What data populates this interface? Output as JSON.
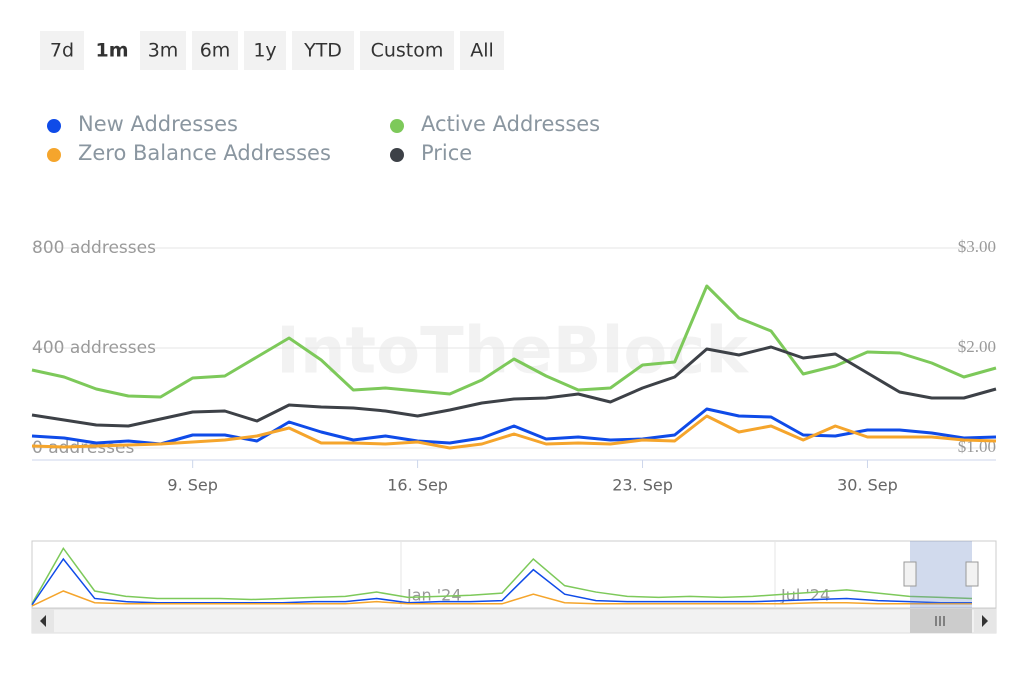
{
  "range_buttons": [
    "7d",
    "1m",
    "3m",
    "6m",
    "1y",
    "YTD",
    "Custom",
    "All"
  ],
  "selected_button": 1,
  "chart_data": {
    "type": "line",
    "watermark": "IntoTheBlock",
    "x": [
      4,
      5,
      6,
      7,
      8,
      9,
      10,
      11,
      12,
      13,
      14,
      15,
      16,
      17,
      18,
      19,
      20,
      21,
      22,
      23,
      24,
      25,
      26,
      27,
      28,
      29,
      30,
      31,
      32,
      33,
      34
    ],
    "xlim": [
      4,
      34
    ],
    "xticks": [
      {
        "value": 9,
        "label": "9. Sep"
      },
      {
        "value": 16,
        "label": "16. Sep"
      },
      {
        "value": 23,
        "label": "23. Sep"
      },
      {
        "value": 30,
        "label": "30. Sep"
      }
    ],
    "ylim": [
      0,
      800
    ],
    "yticks": [
      {
        "value": 0,
        "label": "0 addresses"
      },
      {
        "value": 400,
        "label": "400 addresses"
      },
      {
        "value": 800,
        "label": "800 addresses"
      }
    ],
    "y2lim": [
      1,
      3
    ],
    "y2ticks": [
      {
        "value": 1,
        "label": "$1.00"
      },
      {
        "value": 2,
        "label": "$2.00"
      },
      {
        "value": 3,
        "label": "$3.00"
      }
    ],
    "grid": true,
    "series": [
      {
        "name": "New Addresses",
        "color": "#0f4be8",
        "values": [
          48,
          40,
          20,
          28,
          16,
          52,
          52,
          28,
          104,
          64,
          32,
          48,
          28,
          20,
          40,
          88,
          36,
          44,
          32,
          36,
          52,
          156,
          128,
          124,
          52,
          48,
          72,
          72,
          60,
          40,
          44
        ]
      },
      {
        "name": "Zero Balance Addresses",
        "color": "#f5a52c",
        "values": [
          8,
          4,
          8,
          12,
          16,
          24,
          32,
          48,
          80,
          20,
          20,
          16,
          24,
          0,
          16,
          56,
          16,
          20,
          16,
          32,
          28,
          128,
          64,
          88,
          32,
          88,
          44,
          44,
          44,
          32,
          28
        ]
      },
      {
        "name": "Active Addresses",
        "color": "#7dc95a",
        "values": [
          312,
          284,
          236,
          208,
          204,
          280,
          288,
          364,
          440,
          352,
          232,
          240,
          228,
          216,
          272,
          356,
          288,
          232,
          240,
          332,
          344,
          648,
          520,
          468,
          296,
          328,
          384,
          380,
          340,
          284,
          320
        ]
      },
      {
        "name": "Price",
        "color": "#3d4147",
        "axis": "y2",
        "values": [
          1.33,
          1.28,
          1.23,
          1.22,
          1.29,
          1.36,
          1.37,
          1.27,
          1.43,
          1.41,
          1.4,
          1.37,
          1.32,
          1.38,
          1.45,
          1.49,
          1.5,
          1.54,
          1.46,
          1.6,
          1.71,
          1.99,
          1.93,
          2.01,
          1.9,
          1.94,
          1.75,
          1.56,
          1.5,
          1.5,
          1.59
        ]
      }
    ]
  },
  "navigator": {
    "labels": [
      "Jan '24",
      "Jul '24"
    ],
    "ylim": [
      0,
      60
    ],
    "series": [
      {
        "color": "#7dc95a",
        "values": [
          3,
          55,
          15,
          10,
          8,
          8,
          8,
          7,
          8,
          9,
          10,
          14,
          9,
          10,
          11,
          13,
          45,
          20,
          14,
          10,
          9,
          10,
          9,
          10,
          12,
          14,
          16,
          13,
          10,
          9,
          8
        ]
      },
      {
        "color": "#0f4be8",
        "values": [
          2,
          45,
          8,
          5,
          4,
          4,
          4,
          4,
          4,
          5,
          5,
          8,
          4,
          5,
          5,
          6,
          35,
          12,
          6,
          5,
          5,
          5,
          5,
          5,
          6,
          7,
          8,
          6,
          5,
          4,
          4
        ]
      },
      {
        "color": "#f5a52c",
        "values": [
          1,
          15,
          4,
          3,
          3,
          3,
          3,
          3,
          3,
          3,
          3,
          5,
          3,
          3,
          3,
          3,
          12,
          4,
          3,
          3,
          3,
          3,
          3,
          3,
          3,
          4,
          4,
          3,
          3,
          3,
          3
        ]
      }
    ]
  }
}
